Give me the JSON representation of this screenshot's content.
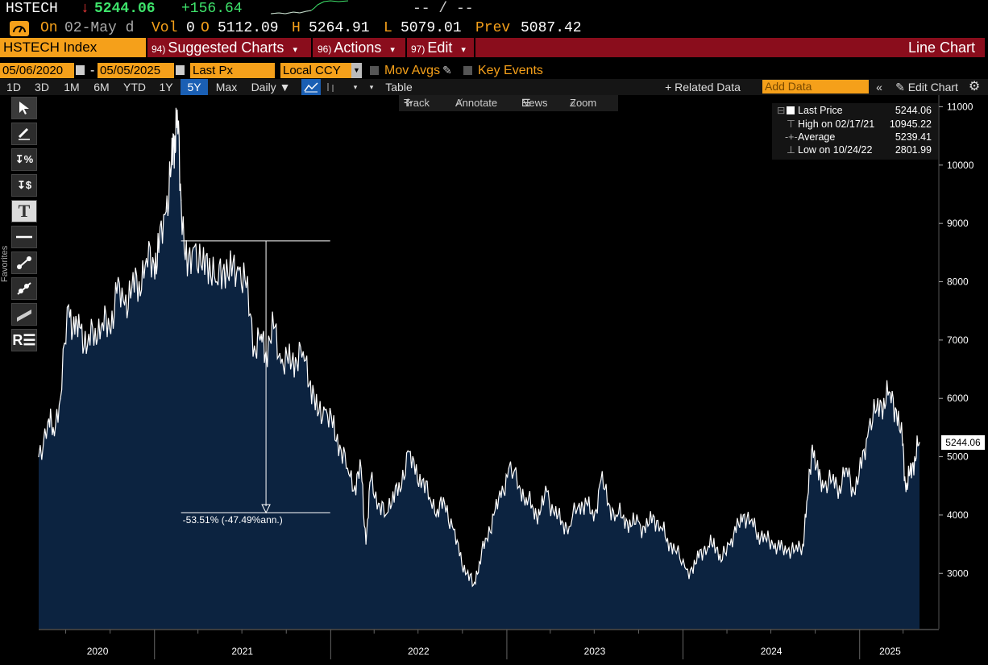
{
  "header": {
    "ticker": "HSTECH",
    "arrow": "↓",
    "last": "5244.06",
    "change": "+156.64",
    "dashes": "-- / --",
    "on_label": "On",
    "on_date": "02-May d",
    "vol_label": "Vol",
    "vol_value": "0",
    "o_label": "O",
    "open": "5112.09",
    "h_label": "H",
    "high": "5264.91",
    "l_label": "L",
    "low": "5079.01",
    "prev_label": "Prev",
    "prev": "5087.42"
  },
  "menubar": {
    "security": "HSTECH Index",
    "items": [
      {
        "num": "94)",
        "label": "Suggested Charts",
        "caret": "▾"
      },
      {
        "num": "96)",
        "label": "Actions",
        "caret": "▾"
      },
      {
        "num": "97)",
        "label": "Edit",
        "caret": "▾"
      }
    ],
    "chart_type": "Line Chart"
  },
  "options": {
    "start_date": "05/06/2020",
    "dash": "-",
    "end_date": "05/05/2025",
    "field": "Last Px",
    "currency": "Local CCY",
    "mov_avgs": "Mov Avgs",
    "key_events": "Key Events"
  },
  "toolbar": {
    "ranges": [
      "1D",
      "3D",
      "1M",
      "6M",
      "YTD",
      "1Y",
      "5Y",
      "Max"
    ],
    "selected_range": "5Y",
    "frequency": "Daily ▼",
    "table": "Table",
    "related_data": "+ Related Data",
    "add_data_placeholder": "Add Data",
    "edit_chart": "Edit Chart"
  },
  "left_tools": {
    "favorites": "Favorites",
    "icons": [
      "cursor-icon",
      "pencil-icon",
      "percent-measure-icon",
      "dollar-measure-icon",
      "text-tool-icon",
      "horizontal-line-icon",
      "trend-line-icon",
      "ray-line-icon",
      "channel-icon",
      "regression-icon"
    ]
  },
  "chart_tools": {
    "track": "Track",
    "annotate": "Annotate",
    "news": "News",
    "zoom": "Zoom"
  },
  "legend": {
    "rows": [
      {
        "label": "Last Price",
        "value": "5244.06"
      },
      {
        "label": "High on 02/17/21",
        "value": "10945.22"
      },
      {
        "label": "Average",
        "value": "5239.41"
      },
      {
        "label": "Low on 10/24/22",
        "value": "2801.99"
      }
    ]
  },
  "annotation": {
    "text": "-53.51% (-47.49%ann.)"
  },
  "last_price_tag": "5244.06",
  "colors": {
    "orange": "#f5a01a",
    "menu_red": "#8a0d1c",
    "area_fill": "#0c2340",
    "line": "#ffffff",
    "down": "#ff3b3b",
    "up": "#3ee36b",
    "selected": "#1a5fb4"
  },
  "chart_data": {
    "type": "area",
    "title": "",
    "xlabel": "",
    "ylabel": "",
    "ylim": [
      2050,
      11200
    ],
    "x_ticks": [
      "2020",
      "2021",
      "2022",
      "2023",
      "2024",
      "2025"
    ],
    "y_ticks": [
      3000,
      4000,
      5000,
      6000,
      7000,
      8000,
      9000,
      10000,
      11000
    ],
    "grid": false,
    "legend_position": "top-right",
    "series": [
      {
        "x": [
          "2020-05-06",
          "2020-05-25",
          "2020-06-05",
          "2020-06-20",
          "2020-07-07",
          "2020-07-20",
          "2020-08-01",
          "2020-08-15",
          "2020-08-31",
          "2020-09-15",
          "2020-09-30",
          "2020-10-15",
          "2020-10-31",
          "2020-11-15",
          "2020-11-30",
          "2020-12-15",
          "2020-12-31",
          "2021-01-10",
          "2021-01-25",
          "2021-02-05",
          "2021-02-12",
          "2021-02-17",
          "2021-02-25",
          "2021-03-10",
          "2021-03-25",
          "2021-04-10",
          "2021-04-25",
          "2021-05-10",
          "2021-05-25",
          "2021-06-10",
          "2021-06-25",
          "2021-07-10",
          "2021-07-27",
          "2021-08-10",
          "2021-08-20",
          "2021-09-05",
          "2021-09-20",
          "2021-10-05",
          "2021-10-20",
          "2021-11-05",
          "2021-11-20",
          "2021-12-05",
          "2021-12-20",
          "2022-01-05",
          "2022-01-20",
          "2022-02-05",
          "2022-02-20",
          "2022-03-05",
          "2022-03-15",
          "2022-03-25",
          "2022-04-10",
          "2022-04-25",
          "2022-05-10",
          "2022-05-25",
          "2022-06-10",
          "2022-06-25",
          "2022-07-10",
          "2022-07-25",
          "2022-08-10",
          "2022-08-25",
          "2022-09-10",
          "2022-09-25",
          "2022-10-10",
          "2022-10-24",
          "2022-11-05",
          "2022-11-20",
          "2022-12-05",
          "2022-12-20",
          "2023-01-05",
          "2023-01-27",
          "2023-02-10",
          "2023-02-25",
          "2023-03-10",
          "2023-03-25",
          "2023-04-10",
          "2023-04-25",
          "2023-05-10",
          "2023-05-31",
          "2023-06-15",
          "2023-06-30",
          "2023-07-15",
          "2023-07-31",
          "2023-08-15",
          "2023-08-31",
          "2023-09-15",
          "2023-09-30",
          "2023-10-15",
          "2023-10-31",
          "2023-11-15",
          "2023-11-30",
          "2023-12-15",
          "2024-01-05",
          "2024-01-22",
          "2024-02-05",
          "2024-02-20",
          "2024-03-05",
          "2024-03-20",
          "2024-04-05",
          "2024-04-20",
          "2024-05-05",
          "2024-05-20",
          "2024-06-05",
          "2024-06-20",
          "2024-07-05",
          "2024-07-20",
          "2024-08-05",
          "2024-08-20",
          "2024-09-05",
          "2024-09-15",
          "2024-09-25",
          "2024-10-08",
          "2024-10-20",
          "2024-11-05",
          "2024-11-20",
          "2024-12-05",
          "2024-12-20",
          "2025-01-05",
          "2025-01-20",
          "2025-02-05",
          "2025-02-20",
          "2025-03-05",
          "2025-03-18",
          "2025-03-31",
          "2025-04-07",
          "2025-04-15",
          "2025-04-25",
          "2025-05-05"
        ],
        "y": [
          5000,
          5600,
          5500,
          6000,
          7600,
          7100,
          7200,
          6900,
          7200,
          7300,
          7200,
          7800,
          7600,
          7900,
          8000,
          8400,
          8300,
          8500,
          9200,
          10000,
          10500,
          10945,
          9400,
          8100,
          8600,
          8200,
          8400,
          8000,
          8300,
          8100,
          8200,
          7900,
          6900,
          7100,
          6800,
          7200,
          6600,
          6600,
          6700,
          6800,
          6300,
          5700,
          5800,
          5500,
          5200,
          4800,
          4500,
          4800,
          3500,
          4600,
          4200,
          4000,
          4400,
          4400,
          5100,
          4700,
          4600,
          4300,
          4100,
          4200,
          3800,
          3300,
          3000,
          2802,
          3200,
          3600,
          4000,
          4300,
          4800,
          4500,
          4300,
          4100,
          4000,
          4400,
          4000,
          3900,
          3800,
          4200,
          4200,
          3900,
          4600,
          4200,
          4000,
          4000,
          3800,
          3900,
          3700,
          4000,
          3800,
          3600,
          3400,
          3100,
          3000,
          3400,
          3400,
          3600,
          3200,
          3500,
          3700,
          4000,
          3900,
          3700,
          3600,
          3500,
          3400,
          3400,
          3400,
          3500,
          4300,
          5200,
          4600,
          4500,
          4600,
          4500,
          4800,
          4400,
          4800,
          5500,
          5800,
          6000,
          6100,
          5800,
          5200,
          4400,
          4700,
          5000,
          5244
        ]
      }
    ]
  }
}
